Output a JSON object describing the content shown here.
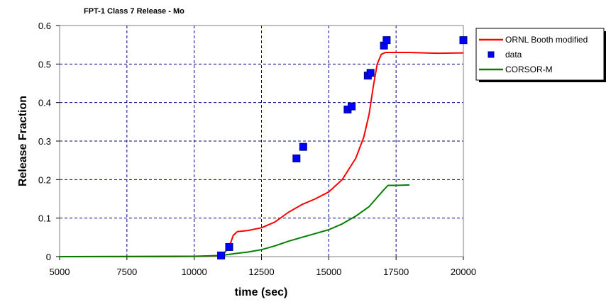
{
  "chart_data": {
    "type": "line",
    "title": "FPT-1 Class 7 Release - Mo",
    "xlabel": "time (sec)",
    "ylabel": "Release Fraction",
    "xlim": [
      5000,
      20000
    ],
    "ylim": [
      0,
      0.6
    ],
    "x_ticks": [
      5000,
      7500,
      10000,
      12500,
      15000,
      17500,
      20000
    ],
    "y_ticks": [
      0,
      0.1,
      0.2,
      0.3,
      0.4,
      0.5,
      0.6
    ],
    "grid": true,
    "legend_position": "top-right",
    "series": [
      {
        "name": "ORNL Booth modified",
        "kind": "line",
        "color": "#ff0000",
        "points": [
          [
            5000,
            0
          ],
          [
            9000,
            0
          ],
          [
            10500,
            0.001
          ],
          [
            10900,
            0.003
          ],
          [
            11100,
            0.008
          ],
          [
            11300,
            0.025
          ],
          [
            11450,
            0.055
          ],
          [
            11600,
            0.065
          ],
          [
            12000,
            0.068
          ],
          [
            12500,
            0.075
          ],
          [
            13000,
            0.09
          ],
          [
            13500,
            0.115
          ],
          [
            14000,
            0.135
          ],
          [
            14500,
            0.15
          ],
          [
            15000,
            0.168
          ],
          [
            15500,
            0.2
          ],
          [
            16000,
            0.255
          ],
          [
            16300,
            0.31
          ],
          [
            16500,
            0.37
          ],
          [
            16650,
            0.44
          ],
          [
            16800,
            0.5
          ],
          [
            16950,
            0.525
          ],
          [
            17100,
            0.53
          ],
          [
            18000,
            0.53
          ],
          [
            19000,
            0.528
          ],
          [
            20000,
            0.529
          ]
        ]
      },
      {
        "name": "data",
        "kind": "scatter",
        "color": "#0000ff",
        "points": [
          [
            11000,
            0.003
          ],
          [
            11300,
            0.025
          ],
          [
            13800,
            0.255
          ],
          [
            14050,
            0.285
          ],
          [
            15700,
            0.382
          ],
          [
            15850,
            0.39
          ],
          [
            16450,
            0.47
          ],
          [
            16550,
            0.477
          ],
          [
            17050,
            0.548
          ],
          [
            17150,
            0.562
          ],
          [
            20000,
            0.562
          ]
        ]
      },
      {
        "name": "CORSOR-M",
        "kind": "line",
        "color": "#008000",
        "points": [
          [
            5000,
            0
          ],
          [
            10000,
            0.001
          ],
          [
            11000,
            0.003
          ],
          [
            11500,
            0.008
          ],
          [
            12000,
            0.012
          ],
          [
            12500,
            0.018
          ],
          [
            13000,
            0.028
          ],
          [
            13500,
            0.04
          ],
          [
            14000,
            0.05
          ],
          [
            14500,
            0.06
          ],
          [
            15000,
            0.07
          ],
          [
            15500,
            0.085
          ],
          [
            16000,
            0.105
          ],
          [
            16500,
            0.13
          ],
          [
            17000,
            0.17
          ],
          [
            17200,
            0.185
          ],
          [
            17500,
            0.185
          ],
          [
            18000,
            0.186
          ]
        ]
      }
    ]
  }
}
